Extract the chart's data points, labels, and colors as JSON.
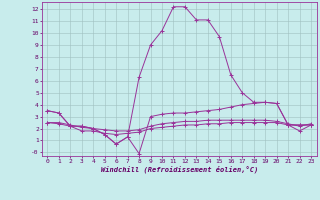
{
  "background_color": "#c8ecec",
  "grid_color": "#b0c8c8",
  "line_color": "#993399",
  "xlabel": "Windchill (Refroidissement éolien,°C)",
  "xlim": [
    -0.5,
    23.5
  ],
  "ylim": [
    -0.3,
    12.6
  ],
  "xticks": [
    0,
    1,
    2,
    3,
    4,
    5,
    6,
    7,
    8,
    9,
    10,
    11,
    12,
    13,
    14,
    15,
    16,
    17,
    18,
    19,
    20,
    21,
    22,
    23
  ],
  "yticks": [
    0,
    1,
    2,
    3,
    4,
    5,
    6,
    7,
    8,
    9,
    10,
    11,
    12
  ],
  "ytick_labels": [
    "-0",
    "1",
    "2",
    "3",
    "4",
    "5",
    "6",
    "7",
    "8",
    "9",
    "10",
    "11",
    "12"
  ],
  "series": [
    {
      "x": [
        0,
        1,
        2,
        3,
        4,
        5,
        6,
        7,
        8,
        9,
        10,
        11,
        12,
        13,
        14,
        15,
        16,
        17,
        18,
        19,
        20,
        21,
        22,
        23
      ],
      "y": [
        3.5,
        3.3,
        2.2,
        2.2,
        2.0,
        1.5,
        0.7,
        1.3,
        6.3,
        9.0,
        10.2,
        12.2,
        12.2,
        11.1,
        11.1,
        9.7,
        6.5,
        5.0,
        4.2,
        4.2,
        4.1,
        2.3,
        2.3,
        2.3
      ]
    },
    {
      "x": [
        0,
        1,
        2,
        3,
        4,
        5,
        6,
        7,
        8,
        9,
        10,
        11,
        12,
        13,
        14,
        15,
        16,
        17,
        18,
        19,
        20,
        21,
        22,
        23
      ],
      "y": [
        3.5,
        3.3,
        2.2,
        2.2,
        2.0,
        1.5,
        0.7,
        1.3,
        -0.1,
        3.0,
        3.2,
        3.3,
        3.3,
        3.4,
        3.5,
        3.6,
        3.8,
        4.0,
        4.1,
        4.2,
        4.1,
        2.3,
        2.3,
        2.3
      ]
    },
    {
      "x": [
        0,
        1,
        2,
        3,
        4,
        5,
        6,
        7,
        8,
        9,
        10,
        11,
        12,
        13,
        14,
        15,
        16,
        17,
        18,
        19,
        20,
        21,
        22,
        23
      ],
      "y": [
        2.5,
        2.4,
        2.2,
        1.8,
        1.8,
        1.6,
        1.5,
        1.6,
        1.7,
        2.0,
        2.1,
        2.2,
        2.3,
        2.3,
        2.4,
        2.4,
        2.5,
        2.5,
        2.5,
        2.5,
        2.5,
        2.3,
        1.8,
        2.3
      ]
    },
    {
      "x": [
        0,
        1,
        2,
        3,
        4,
        5,
        6,
        7,
        8,
        9,
        10,
        11,
        12,
        13,
        14,
        15,
        16,
        17,
        18,
        19,
        20,
        21,
        22,
        23
      ],
      "y": [
        2.5,
        2.5,
        2.3,
        2.1,
        2.0,
        1.9,
        1.8,
        1.8,
        1.9,
        2.2,
        2.4,
        2.5,
        2.6,
        2.6,
        2.7,
        2.7,
        2.7,
        2.7,
        2.7,
        2.7,
        2.6,
        2.4,
        2.2,
        2.4
      ]
    }
  ]
}
